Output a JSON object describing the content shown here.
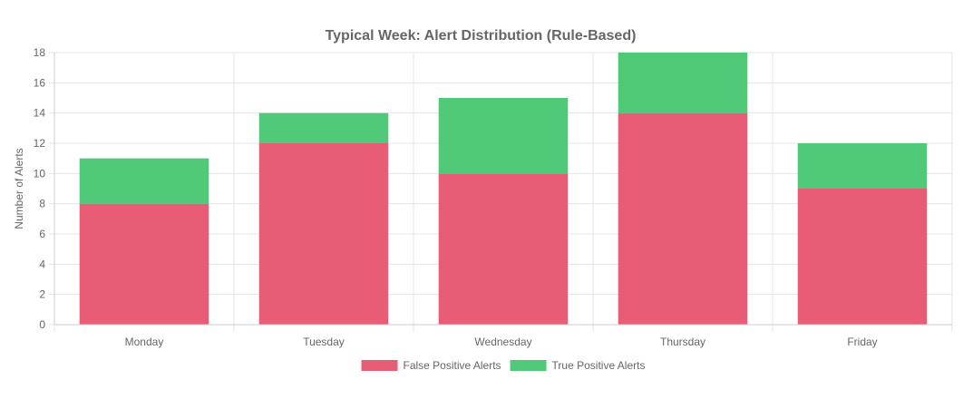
{
  "chart_data": {
    "type": "bar",
    "stacked": true,
    "title": "Typical Week: Alert Distribution (Rule-Based)",
    "xlabel": "",
    "ylabel": "Number of Alerts",
    "ylim": [
      0,
      18
    ],
    "ytick_step": 2,
    "grid": true,
    "legend_position": "bottom",
    "categories": [
      "Monday",
      "Tuesday",
      "Wednesday",
      "Thursday",
      "Friday"
    ],
    "series": [
      {
        "name": "False Positive Alerts",
        "color": "#e85d75",
        "values": [
          8,
          12,
          10,
          14,
          9
        ]
      },
      {
        "name": "True Positive Alerts",
        "color": "#4fc878",
        "values": [
          3,
          2,
          5,
          4,
          3
        ]
      }
    ]
  }
}
